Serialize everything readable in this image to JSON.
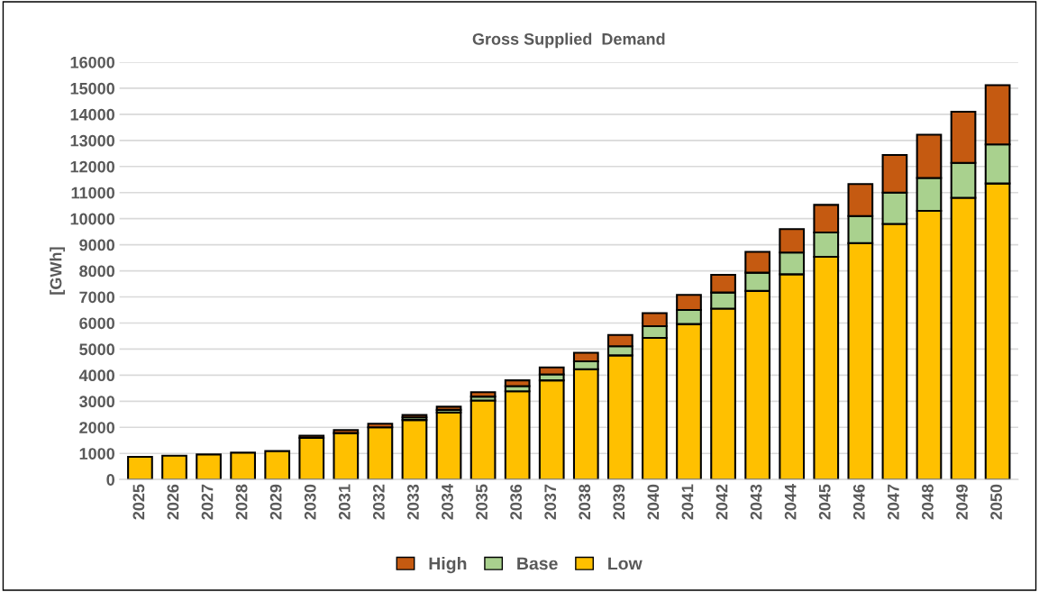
{
  "chart_data": {
    "type": "bar",
    "title": "Gross Supplied  Demand",
    "ylabel": "[GWh]",
    "stacked": true,
    "categories": [
      "2025",
      "2026",
      "2027",
      "2028",
      "2029",
      "2030",
      "2031",
      "2032",
      "2033",
      "2034",
      "2035",
      "2036",
      "2037",
      "2038",
      "2039",
      "2040",
      "2041",
      "2042",
      "2043",
      "2044",
      "2045",
      "2046",
      "2047",
      "2048",
      "2049",
      "2050"
    ],
    "series": [
      {
        "name": "Low",
        "color": "#ffc000",
        "values": [
          870,
          910,
          960,
          1030,
          1090,
          1600,
          1780,
          2000,
          2280,
          2570,
          3030,
          3380,
          3800,
          4230,
          4760,
          5430,
          5960,
          6550,
          7230,
          7870,
          8540,
          9060,
          9800,
          10300,
          10800,
          11350
        ]
      },
      {
        "name": "Base",
        "color": "#a9d18e",
        "values": [
          null,
          null,
          null,
          null,
          null,
          null,
          null,
          null,
          100,
          100,
          150,
          200,
          230,
          300,
          350,
          450,
          540,
          620,
          700,
          830,
          930,
          1040,
          1200,
          1260,
          1340,
          1500
        ]
      },
      {
        "name": "High",
        "color": "#c55a11",
        "values": [
          null,
          null,
          null,
          null,
          null,
          80,
          120,
          140,
          90,
          120,
          170,
          220,
          270,
          330,
          430,
          500,
          580,
          680,
          800,
          900,
          1060,
          1230,
          1440,
          1660,
          1960,
          2270
        ]
      }
    ],
    "ylim": [
      0,
      16000
    ],
    "yticks": [
      0,
      1000,
      2000,
      3000,
      4000,
      5000,
      6000,
      7000,
      8000,
      9000,
      10000,
      11000,
      12000,
      13000,
      14000,
      15000,
      16000
    ],
    "grid": "y",
    "legend": "bottom"
  }
}
